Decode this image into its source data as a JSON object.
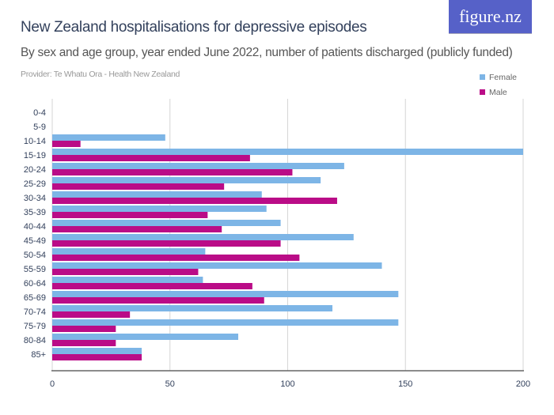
{
  "logo": "figure.nz",
  "chart_data": {
    "type": "bar",
    "orientation": "horizontal",
    "title": "New Zealand hospitalisations for depressive episodes",
    "subtitle": "By sex and age group, year ended June 2022, number of patients discharged (publicly funded)",
    "provider": "Provider: Te Whatu Ora - Health New Zealand",
    "categories": [
      "0-4",
      "5-9",
      "10-14",
      "15-19",
      "20-24",
      "25-29",
      "30-34",
      "35-39",
      "40-44",
      "45-49",
      "50-54",
      "55-59",
      "60-64",
      "65-69",
      "70-74",
      "75-79",
      "80-84",
      "85+"
    ],
    "series": [
      {
        "name": "Female",
        "color": "#7db5e6",
        "values": [
          0,
          0,
          48,
          200,
          124,
          114,
          89,
          91,
          97,
          128,
          65,
          140,
          64,
          147,
          119,
          147,
          79,
          38
        ]
      },
      {
        "name": "Male",
        "color": "#ba0c87",
        "values": [
          0,
          0,
          12,
          84,
          102,
          73,
          121,
          66,
          72,
          97,
          105,
          62,
          85,
          90,
          33,
          27,
          27,
          38
        ]
      }
    ],
    "xlim": [
      0,
      200
    ],
    "xticks": [
      "0",
      "50",
      "100",
      "150",
      "200"
    ],
    "grid": true,
    "legend_position": "top-right"
  }
}
